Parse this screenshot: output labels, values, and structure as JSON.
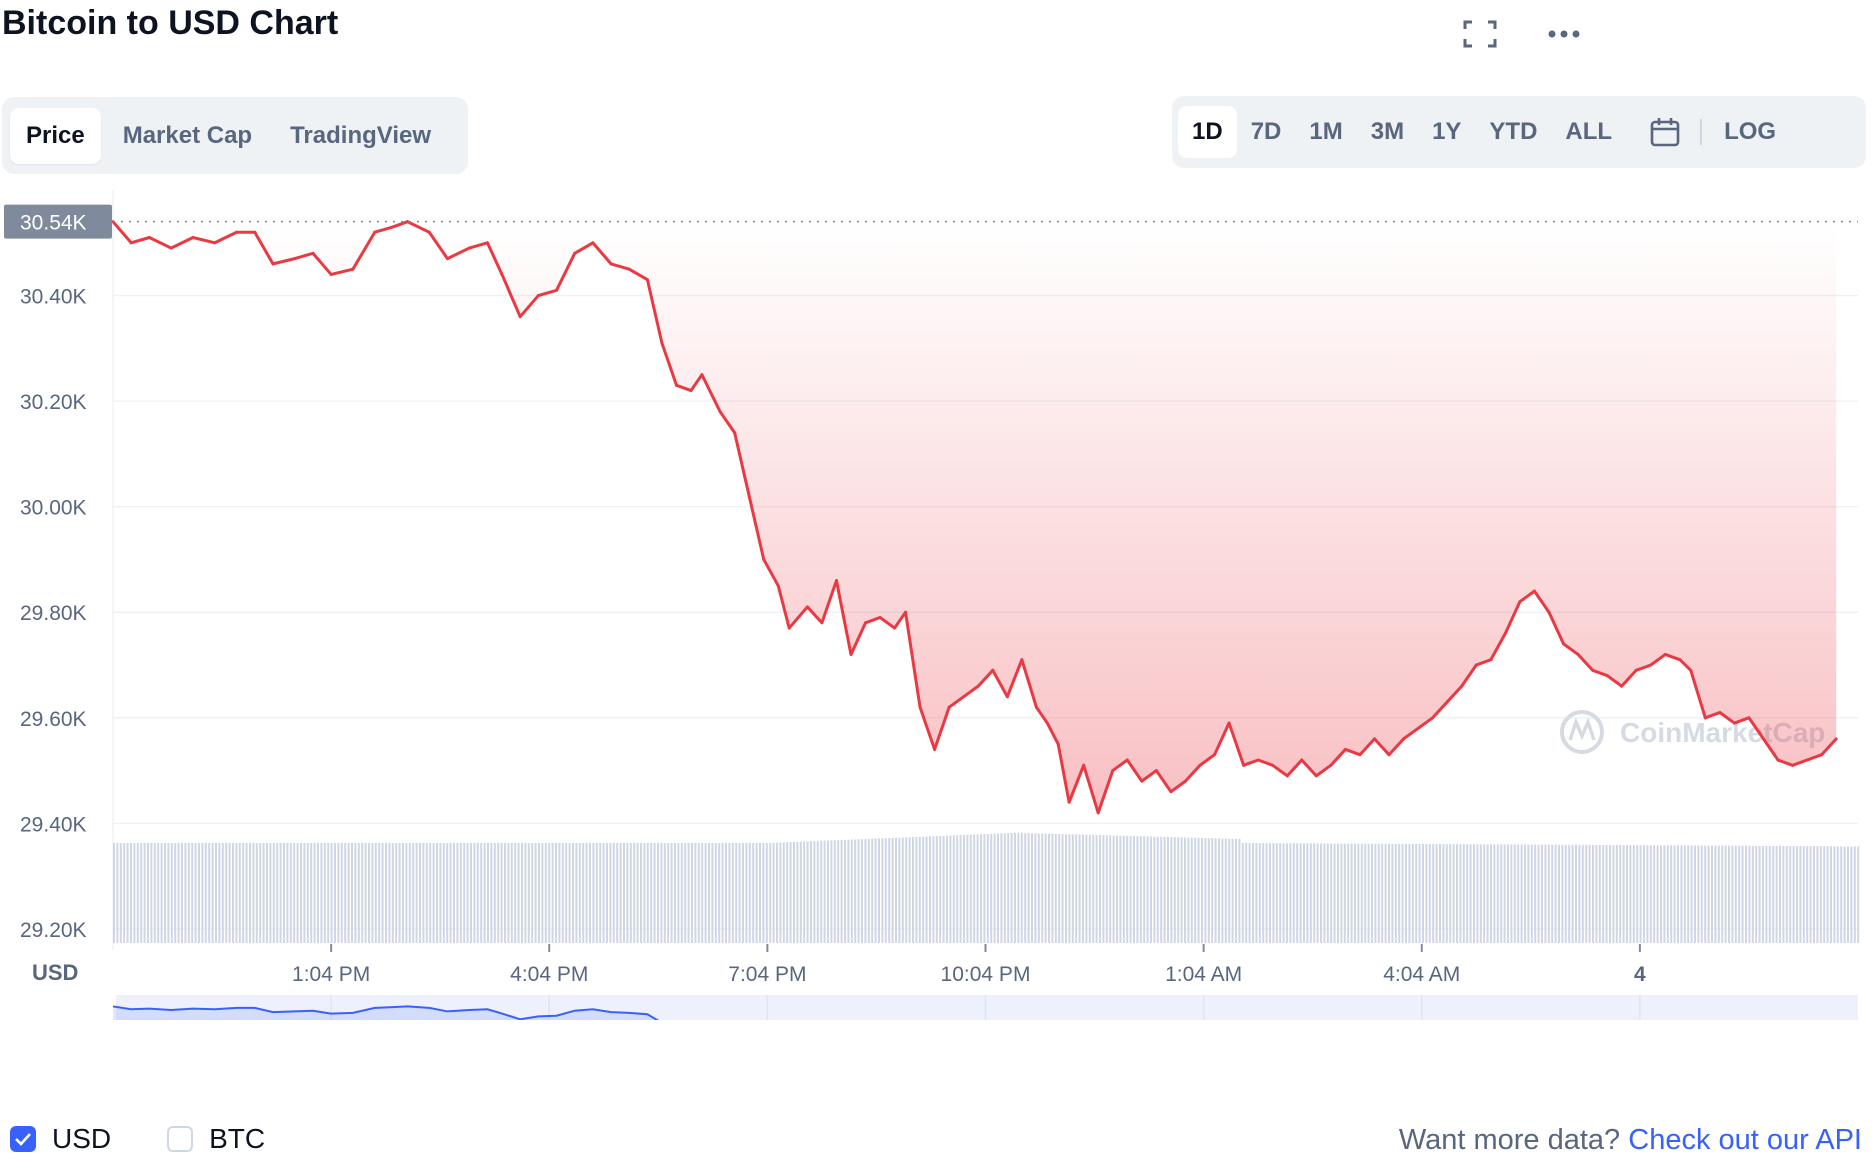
{
  "header": {
    "title": "Bitcoin to USD Chart"
  },
  "icons": {
    "fullscreen": "fullscreen-icon",
    "more": "more-horizontal-icon",
    "calendar": "calendar-icon"
  },
  "tabs": [
    {
      "label": "Price",
      "active": true
    },
    {
      "label": "Market Cap",
      "active": false
    },
    {
      "label": "TradingView",
      "active": false
    }
  ],
  "ranges": [
    {
      "label": "1D",
      "active": true
    },
    {
      "label": "7D",
      "active": false
    },
    {
      "label": "1M",
      "active": false
    },
    {
      "label": "3M",
      "active": false
    },
    {
      "label": "1Y",
      "active": false
    },
    {
      "label": "YTD",
      "active": false
    },
    {
      "label": "ALL",
      "active": false
    }
  ],
  "log_label": "LOG",
  "legend": {
    "usd": {
      "label": "USD",
      "checked": true
    },
    "btc": {
      "label": "BTC",
      "checked": false
    }
  },
  "footer": {
    "prefix": "Want more data?",
    "link": "Check out our API"
  },
  "watermark": "CoinMarketCap",
  "chart_data": {
    "type": "line",
    "currency_label": "USD",
    "current_price_label": "30.54K",
    "current_price": 30540,
    "y_ticks": [
      "30.40K",
      "30.20K",
      "30.00K",
      "29.80K",
      "29.60K",
      "29.40K",
      "29.20K"
    ],
    "y_tick_values": [
      30400,
      30200,
      30000,
      29800,
      29600,
      29400,
      29200
    ],
    "ylim": [
      29160,
      30600
    ],
    "x_ticks": [
      "1:04 PM",
      "4:04 PM",
      "7:04 PM",
      "10:04 PM",
      "1:04 AM",
      "4:04 AM",
      "4"
    ],
    "x_tick_hours": [
      3,
      6,
      9,
      12,
      15,
      18,
      21
    ],
    "xlim_hours": [
      0,
      24
    ],
    "colors": {
      "down": "#ea3943",
      "up": "#16c784",
      "navigator": "#3861fb",
      "volume": "#cfd6e4"
    },
    "series": [
      {
        "points": [
          [
            0,
            30540
          ],
          [
            0.25,
            30500
          ],
          [
            0.5,
            30510
          ],
          [
            0.8,
            30490
          ],
          [
            1.1,
            30510
          ],
          [
            1.4,
            30500
          ],
          [
            1.7,
            30520
          ],
          [
            1.95,
            30520
          ],
          [
            2.2,
            30460
          ],
          [
            2.5,
            30470
          ],
          [
            2.75,
            30480
          ],
          [
            3.0,
            30440
          ],
          [
            3.3,
            30450
          ],
          [
            3.6,
            30520
          ],
          [
            3.85,
            30530
          ],
          [
            4.05,
            30540
          ],
          [
            4.35,
            30520
          ],
          [
            4.6,
            30470
          ],
          [
            4.9,
            30490
          ],
          [
            5.15,
            30500
          ],
          [
            5.35,
            30440
          ],
          [
            5.6,
            30360
          ],
          [
            5.85,
            30400
          ],
          [
            6.1,
            30410
          ],
          [
            6.35,
            30480
          ],
          [
            6.6,
            30500
          ],
          [
            6.85,
            30460
          ],
          [
            7.1,
            30450
          ],
          [
            7.35,
            30430
          ],
          [
            7.55,
            30310
          ],
          [
            7.75,
            30230
          ],
          [
            7.95,
            30220
          ],
          [
            8.1,
            30250
          ],
          [
            8.35,
            30180
          ],
          [
            8.55,
            30140
          ],
          [
            8.75,
            30020
          ],
          [
            8.95,
            29900
          ],
          [
            9.15,
            29850
          ],
          [
            9.3,
            29770
          ],
          [
            9.55,
            29810
          ],
          [
            9.75,
            29780
          ],
          [
            9.95,
            29860
          ],
          [
            10.15,
            29720
          ],
          [
            10.35,
            29780
          ],
          [
            10.55,
            29790
          ],
          [
            10.75,
            29770
          ],
          [
            10.9,
            29800
          ],
          [
            11.1,
            29620
          ],
          [
            11.3,
            29540
          ],
          [
            11.5,
            29620
          ],
          [
            11.7,
            29640
          ],
          [
            11.9,
            29660
          ],
          [
            12.1,
            29690
          ],
          [
            12.3,
            29640
          ],
          [
            12.5,
            29710
          ],
          [
            12.7,
            29620
          ],
          [
            12.85,
            29590
          ],
          [
            13.0,
            29550
          ],
          [
            13.15,
            29440
          ],
          [
            13.35,
            29510
          ],
          [
            13.55,
            29420
          ],
          [
            13.75,
            29500
          ],
          [
            13.95,
            29520
          ],
          [
            14.15,
            29480
          ],
          [
            14.35,
            29500
          ],
          [
            14.55,
            29460
          ],
          [
            14.75,
            29480
          ],
          [
            14.95,
            29510
          ],
          [
            15.15,
            29530
          ],
          [
            15.35,
            29590
          ],
          [
            15.55,
            29510
          ],
          [
            15.75,
            29520
          ],
          [
            15.95,
            29510
          ],
          [
            16.15,
            29490
          ],
          [
            16.35,
            29520
          ],
          [
            16.55,
            29490
          ],
          [
            16.75,
            29510
          ],
          [
            16.95,
            29540
          ],
          [
            17.15,
            29530
          ],
          [
            17.35,
            29560
          ],
          [
            17.55,
            29530
          ],
          [
            17.75,
            29560
          ],
          [
            17.95,
            29580
          ],
          [
            18.15,
            29600
          ],
          [
            18.35,
            29630
          ],
          [
            18.55,
            29660
          ],
          [
            18.75,
            29700
          ],
          [
            18.95,
            29710
          ],
          [
            19.15,
            29760
          ],
          [
            19.35,
            29820
          ],
          [
            19.55,
            29840
          ],
          [
            19.75,
            29800
          ],
          [
            19.95,
            29740
          ],
          [
            20.15,
            29720
          ],
          [
            20.35,
            29690
          ],
          [
            20.55,
            29680
          ],
          [
            20.75,
            29660
          ],
          [
            20.95,
            29690
          ],
          [
            21.15,
            29700
          ],
          [
            21.35,
            29720
          ],
          [
            21.55,
            29710
          ],
          [
            21.7,
            29690
          ],
          [
            21.9,
            29600
          ],
          [
            22.1,
            29610
          ],
          [
            22.3,
            29590
          ],
          [
            22.5,
            29600
          ],
          [
            22.7,
            29560
          ],
          [
            22.9,
            29520
          ],
          [
            23.1,
            29510
          ],
          [
            23.3,
            29520
          ],
          [
            23.5,
            29530
          ],
          [
            23.7,
            29560
          ]
        ]
      }
    ],
    "volume_label_free": true
  }
}
